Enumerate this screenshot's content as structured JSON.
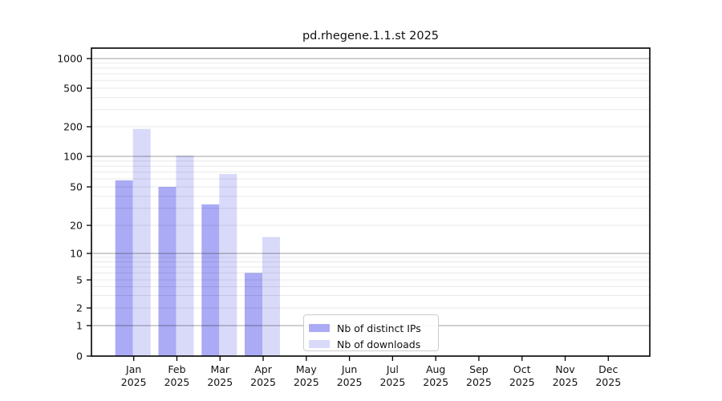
{
  "chart_data": {
    "type": "bar",
    "title": "pd.rhegene.1.1.st 2025",
    "categories": [
      "Jan 2025",
      "Feb 2025",
      "Mar 2025",
      "Apr 2025",
      "May 2025",
      "Jun 2025",
      "Jul 2025",
      "Aug 2025",
      "Sep 2025",
      "Oct 2025",
      "Nov 2025",
      "Dec 2025"
    ],
    "series": [
      {
        "name": "Nb of distinct IPs",
        "color": "#aaaaf5",
        "values": [
          58,
          50,
          33,
          6,
          null,
          null,
          null,
          null,
          null,
          null,
          null,
          null
        ]
      },
      {
        "name": "Nb of downloads",
        "color": "#d9d9fa",
        "values": [
          190,
          102,
          67,
          15,
          null,
          null,
          null,
          null,
          null,
          null,
          null,
          null
        ]
      }
    ],
    "y_axis": {
      "scale": "symlog-like",
      "tick_values": [
        0,
        1,
        2,
        5,
        10,
        20,
        50,
        100,
        200,
        500,
        1000
      ],
      "major_gridline_values": [
        1,
        10,
        100,
        1000
      ],
      "minor_gridline_values": [
        2,
        3,
        4,
        5,
        6,
        7,
        8,
        9,
        20,
        30,
        40,
        50,
        60,
        70,
        80,
        90,
        200,
        300,
        400,
        500,
        600,
        700,
        800,
        900
      ]
    },
    "legend": {
      "position": "lower-center",
      "entries": [
        "Nb of distinct IPs",
        "Nb of downloads"
      ]
    },
    "grid": true,
    "colors": {
      "bar_distinct_ips": "#aaaaf5",
      "bar_downloads": "#d9d9fa",
      "axis": "#000000",
      "background": "#ffffff"
    }
  }
}
